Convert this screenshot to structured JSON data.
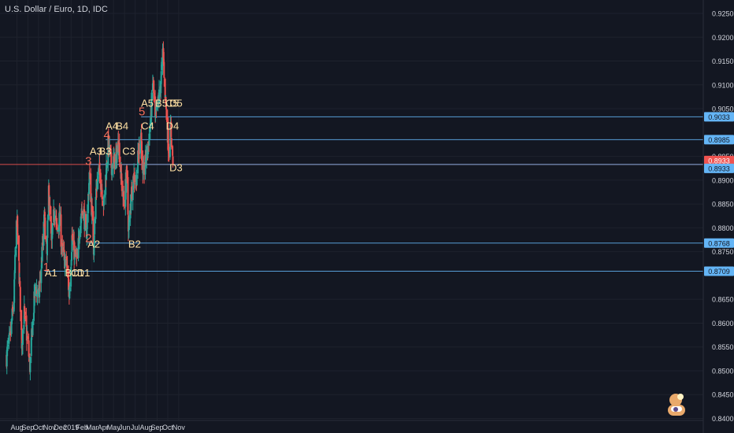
{
  "title": "U.S. Dollar / Euro, 1D, IDC",
  "chart_data": {
    "type": "candlestick",
    "symbol": "U.S. Dollar / Euro",
    "interval": "1D",
    "source": "IDC",
    "ylim": [
      0.84,
      0.925
    ],
    "y_ticks": [
      "0.9250",
      "0.9200",
      "0.9150",
      "0.9100",
      "0.9050",
      "0.8950",
      "0.8900",
      "0.8850",
      "0.8800",
      "0.8750",
      "0.8650",
      "0.8600",
      "0.8550",
      "0.8500",
      "0.8450",
      "0.8400"
    ],
    "x_ticks": [
      "Aug",
      "Sep",
      "Oct",
      "Nov",
      "Dec",
      "2019",
      "Feb",
      "Mar",
      "Apr",
      "May",
      "Jun",
      "Jul",
      "Aug",
      "Sep",
      "Oct",
      "Nov"
    ],
    "price_levels": [
      {
        "value": 0.9033,
        "label": "0.9033"
      },
      {
        "value": 0.8985,
        "label": "0.8985"
      },
      {
        "value": 0.8933,
        "label": "0.8933",
        "current": true
      },
      {
        "value": 0.8933,
        "label": "0.8933"
      },
      {
        "value": 0.8768,
        "label": "0.8768"
      },
      {
        "value": 0.8709,
        "label": "0.8709"
      }
    ],
    "pivot_labels": [
      {
        "text": "A1",
        "date": "2018-11-01",
        "price": 0.8705
      },
      {
        "text": "B1",
        "date": "2018-12-28",
        "price": 0.8705
      },
      {
        "text": "C1",
        "date": "2019-01-14",
        "price": 0.8705
      },
      {
        "text": "D1",
        "date": "2019-01-31",
        "price": 0.8705
      },
      {
        "text": "A2",
        "date": "2019-03-02",
        "price": 0.8765
      },
      {
        "text": "A3",
        "date": "2019-03-08",
        "price": 0.896
      },
      {
        "text": "B3",
        "date": "2019-04-03",
        "price": 0.896
      },
      {
        "text": "A4",
        "date": "2019-04-22",
        "price": 0.9013
      },
      {
        "text": "B4",
        "date": "2019-05-21",
        "price": 0.9013
      },
      {
        "text": "C3",
        "date": "2019-06-08",
        "price": 0.896
      },
      {
        "text": "B2",
        "date": "2019-06-25",
        "price": 0.8765
      },
      {
        "text": "A5",
        "date": "2019-07-31",
        "price": 0.9061
      },
      {
        "text": "C4",
        "date": "2019-07-31",
        "price": 0.9013
      },
      {
        "text": "B5",
        "date": "2019-09-09",
        "price": 0.9061
      },
      {
        "text": "C5",
        "date": "2019-10-08",
        "price": 0.9061
      },
      {
        "text": "D5",
        "date": "2019-10-19",
        "price": 0.9061
      },
      {
        "text": "D4",
        "date": "2019-10-09",
        "price": 0.9013
      },
      {
        "text": "D3",
        "date": "2019-10-19",
        "price": 0.8925
      }
    ],
    "wave_labels": [
      {
        "text": "1",
        "date": "2018-10-27",
        "price": 0.8718
      },
      {
        "text": "2",
        "date": "2019-02-23",
        "price": 0.8778
      },
      {
        "text": "3",
        "date": "2019-02-23",
        "price": 0.894
      },
      {
        "text": "4",
        "date": "2019-04-16",
        "price": 0.8995
      },
      {
        "text": "5",
        "date": "2019-07-24",
        "price": 0.9044
      }
    ],
    "anchors": [
      {
        "date": "2018-07-16",
        "close": 0.853
      },
      {
        "date": "2018-07-26",
        "close": 0.857
      },
      {
        "date": "2018-08-06",
        "close": 0.865
      },
      {
        "date": "2018-08-10",
        "close": 0.875
      },
      {
        "date": "2018-08-14",
        "close": 0.882
      },
      {
        "date": "2018-08-20",
        "close": 0.872
      },
      {
        "date": "2018-08-28",
        "close": 0.856
      },
      {
        "date": "2018-09-04",
        "close": 0.862
      },
      {
        "date": "2018-09-12",
        "close": 0.857
      },
      {
        "date": "2018-09-20",
        "close": 0.851
      },
      {
        "date": "2018-09-28",
        "close": 0.86
      },
      {
        "date": "2018-10-05",
        "close": 0.868
      },
      {
        "date": "2018-10-15",
        "close": 0.865
      },
      {
        "date": "2018-10-24",
        "close": 0.874
      },
      {
        "date": "2018-10-31",
        "close": 0.882
      },
      {
        "date": "2018-11-07",
        "close": 0.874
      },
      {
        "date": "2018-11-12",
        "close": 0.888
      },
      {
        "date": "2018-11-20",
        "close": 0.876
      },
      {
        "date": "2018-11-28",
        "close": 0.884
      },
      {
        "date": "2018-12-06",
        "close": 0.879
      },
      {
        "date": "2018-12-13",
        "close": 0.882
      },
      {
        "date": "2018-12-20",
        "close": 0.875
      },
      {
        "date": "2019-01-02",
        "close": 0.872
      },
      {
        "date": "2019-01-09",
        "close": 0.866
      },
      {
        "date": "2019-01-17",
        "close": 0.878
      },
      {
        "date": "2019-01-25",
        "close": 0.874
      },
      {
        "date": "2019-02-01",
        "close": 0.873
      },
      {
        "date": "2019-02-10",
        "close": 0.883
      },
      {
        "date": "2019-02-18",
        "close": 0.884
      },
      {
        "date": "2019-02-26",
        "close": 0.878
      },
      {
        "date": "2019-03-07",
        "close": 0.891
      },
      {
        "date": "2019-03-12",
        "close": 0.886
      },
      {
        "date": "2019-03-19",
        "close": 0.876
      },
      {
        "date": "2019-03-26",
        "close": 0.888
      },
      {
        "date": "2019-04-03",
        "close": 0.892
      },
      {
        "date": "2019-04-10",
        "close": 0.889
      },
      {
        "date": "2019-04-17",
        "close": 0.885
      },
      {
        "date": "2019-04-25",
        "close": 0.894
      },
      {
        "date": "2019-04-30",
        "close": 0.898
      },
      {
        "date": "2019-05-08",
        "close": 0.893
      },
      {
        "date": "2019-05-15",
        "close": 0.894
      },
      {
        "date": "2019-05-22",
        "close": 0.895
      },
      {
        "date": "2019-05-29",
        "close": 0.898
      },
      {
        "date": "2019-06-05",
        "close": 0.89
      },
      {
        "date": "2019-06-13",
        "close": 0.885
      },
      {
        "date": "2019-06-20",
        "close": 0.891
      },
      {
        "date": "2019-06-26",
        "close": 0.879
      },
      {
        "date": "2019-07-03",
        "close": 0.887
      },
      {
        "date": "2019-07-10",
        "close": 0.891
      },
      {
        "date": "2019-07-17",
        "close": 0.89
      },
      {
        "date": "2019-07-24",
        "close": 0.896
      },
      {
        "date": "2019-07-31",
        "close": 0.9
      },
      {
        "date": "2019-08-05",
        "close": 0.89
      },
      {
        "date": "2019-08-12",
        "close": 0.894
      },
      {
        "date": "2019-08-20",
        "close": 0.897
      },
      {
        "date": "2019-08-28",
        "close": 0.904
      },
      {
        "date": "2019-09-03",
        "close": 0.911
      },
      {
        "date": "2019-09-09",
        "close": 0.902
      },
      {
        "date": "2019-09-17",
        "close": 0.906
      },
      {
        "date": "2019-09-24",
        "close": 0.91
      },
      {
        "date": "2019-10-01",
        "close": 0.917
      },
      {
        "date": "2019-10-08",
        "close": 0.907
      },
      {
        "date": "2019-10-14",
        "close": 0.9
      },
      {
        "date": "2019-10-18",
        "close": 0.896
      },
      {
        "date": "2019-10-23",
        "close": 0.901
      },
      {
        "date": "2019-10-29",
        "close": 0.8933
      }
    ],
    "colors": {
      "up": "#26a69a",
      "down": "#ef5350",
      "background": "#131722",
      "axis_text": "#d1d4dc",
      "level_line": "#64b5f6",
      "current_line": "#ef5350",
      "pivot_label": "#ffe0a3",
      "wave_label": "#f26d5a"
    }
  }
}
